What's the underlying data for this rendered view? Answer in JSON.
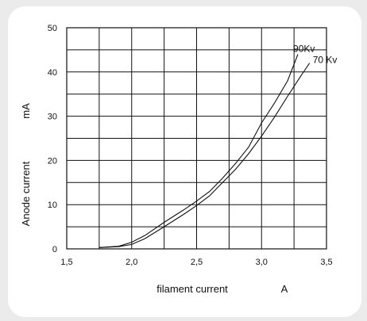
{
  "chart_data": {
    "type": "line",
    "title": "",
    "xlabel": "filament current",
    "xunit": "A",
    "ylabel": "Anode current",
    "yunit": "mA",
    "xlim": [
      1.5,
      3.5
    ],
    "ylim": [
      0,
      50
    ],
    "x_tick_values": [
      1.5,
      2.0,
      2.5,
      3.0,
      3.5
    ],
    "x_tick_labels": [
      "1,5",
      "2,0",
      "2,5",
      "3,0",
      "3,5"
    ],
    "y_tick_values": [
      0,
      10,
      20,
      30,
      40,
      50
    ],
    "y_tick_labels": [
      "0",
      "10",
      "20",
      "30",
      "40",
      "50"
    ],
    "grid": true,
    "series": [
      {
        "name": "90Kv",
        "points": [
          [
            1.75,
            0.3
          ],
          [
            1.9,
            0.6
          ],
          [
            2.0,
            1.5
          ],
          [
            2.1,
            3.0
          ],
          [
            2.25,
            6.0
          ],
          [
            2.4,
            8.8
          ],
          [
            2.5,
            10.8
          ],
          [
            2.6,
            13.0
          ],
          [
            2.7,
            16.0
          ],
          [
            2.8,
            19.3
          ],
          [
            2.9,
            23.0
          ],
          [
            3.0,
            28.5
          ],
          [
            3.1,
            33.0
          ],
          [
            3.2,
            38.0
          ],
          [
            3.28,
            44.0
          ]
        ]
      },
      {
        "name": "70 Kv",
        "points": [
          [
            1.75,
            0.3
          ],
          [
            1.9,
            0.5
          ],
          [
            2.0,
            1.0
          ],
          [
            2.1,
            2.3
          ],
          [
            2.25,
            5.0
          ],
          [
            2.4,
            7.8
          ],
          [
            2.5,
            9.8
          ],
          [
            2.6,
            12.0
          ],
          [
            2.7,
            15.0
          ],
          [
            2.8,
            18.0
          ],
          [
            2.9,
            21.5
          ],
          [
            3.0,
            25.5
          ],
          [
            3.1,
            29.8
          ],
          [
            3.2,
            34.5
          ],
          [
            3.3,
            39.0
          ],
          [
            3.37,
            42.0
          ]
        ]
      }
    ]
  }
}
